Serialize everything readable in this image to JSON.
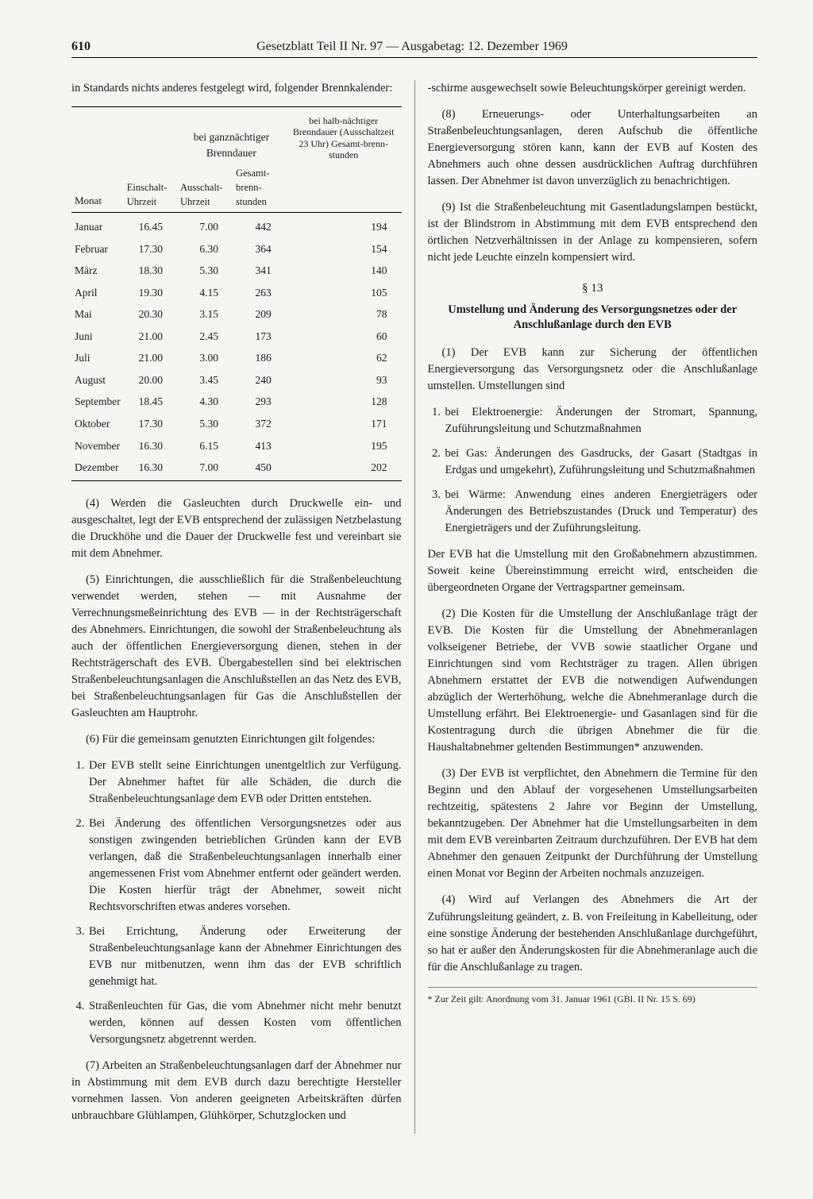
{
  "header": {
    "page": "610",
    "title": "Gesetzblatt Teil II Nr. 97 — Ausgabetag: 12. Dezember 1969"
  },
  "left": {
    "intro": "in Standards nichts anderes festgelegt wird, folgender Brennkalender:",
    "table": {
      "grp1": "bei ganznächtiger Brenndauer",
      "grp2": "bei halb-nächtiger Brenndauer (Ausschaltzeit 23 Uhr) Gesamt-brenn-stunden",
      "h_monat": "Monat",
      "h_ein": "Einschalt-Uhrzeit",
      "h_aus": "Ausschalt-Uhrzeit",
      "h_gesamt": "Gesamt-brenn-stunden",
      "rows": [
        {
          "m": "Januar",
          "e": "16.45",
          "a": "7.00",
          "g": "442",
          "h": "194"
        },
        {
          "m": "Februar",
          "e": "17.30",
          "a": "6.30",
          "g": "364",
          "h": "154"
        },
        {
          "m": "März",
          "e": "18.30",
          "a": "5.30",
          "g": "341",
          "h": "140"
        },
        {
          "m": "April",
          "e": "19.30",
          "a": "4.15",
          "g": "263",
          "h": "105"
        },
        {
          "m": "Mai",
          "e": "20.30",
          "a": "3.15",
          "g": "209",
          "h": "78"
        },
        {
          "m": "Juni",
          "e": "21.00",
          "a": "2.45",
          "g": "173",
          "h": "60"
        },
        {
          "m": "Juli",
          "e": "21.00",
          "a": "3.00",
          "g": "186",
          "h": "62"
        },
        {
          "m": "August",
          "e": "20.00",
          "a": "3.45",
          "g": "240",
          "h": "93"
        },
        {
          "m": "September",
          "e": "18.45",
          "a": "4.30",
          "g": "293",
          "h": "128"
        },
        {
          "m": "Oktober",
          "e": "17.30",
          "a": "5.30",
          "g": "372",
          "h": "171"
        },
        {
          "m": "November",
          "e": "16.30",
          "a": "6.15",
          "g": "413",
          "h": "195"
        },
        {
          "m": "Dezember",
          "e": "16.30",
          "a": "7.00",
          "g": "450",
          "h": "202"
        }
      ]
    },
    "p4": "(4) Werden die Gasleuchten durch Druckwelle ein- und ausgeschaltet, legt der EVB entsprechend der zulässigen Netzbelastung die Druckhöhe und die Dauer der Druckwelle fest und vereinbart sie mit dem Abnehmer.",
    "p5": "(5) Einrichtungen, die ausschließlich für die Straßenbeleuchtung verwendet werden, stehen — mit Ausnahme der Verrechnungsmeßeinrichtung des EVB — in der Rechtsträgerschaft des Abnehmers. Einrichtungen, die sowohl der Straßenbeleuchtung als auch der öffentlichen Energieversorgung dienen, stehen in der Rechtsträgerschaft des EVB. Übergabestellen sind bei elektrischen Straßenbeleuchtungsanlagen die Anschlußstellen an das Netz des EVB, bei Straßenbeleuchtungsanlagen für Gas die Anschlußstellen der Gasleuchten am Hauptrohr.",
    "p6_intro": "(6) Für die gemeinsam genutzten Einrichtungen gilt folgendes:",
    "p6_items": [
      "Der EVB stellt seine Einrichtungen unentgeltlich zur Verfügung. Der Abnehmer haftet für alle Schäden, die durch die Straßenbeleuchtungsanlage dem EVB oder Dritten entstehen.",
      "Bei Änderung des öffentlichen Versorgungsnetzes oder aus sonstigen zwingenden betrieblichen Gründen kann der EVB verlangen, daß die Straßenbeleuchtungsanlagen innerhalb einer angemessenen Frist vom Abnehmer entfernt oder geändert werden. Die Kosten hierfür trägt der Abnehmer, soweit nicht Rechtsvorschriften etwas anderes vorsehen.",
      "Bei Errichtung, Änderung oder Erweiterung der Straßenbeleuchtungsanlage kann der Abnehmer Einrichtungen des EVB nur mitbenutzen, wenn ihm das der EVB schriftlich genehmigt hat.",
      "Straßenleuchten für Gas, die vom Abnehmer nicht mehr benutzt werden, können auf dessen Kosten vom öffentlichen Versorgungsnetz abgetrennt werden."
    ],
    "p7": "(7) Arbeiten an Straßenbeleuchtungsanlagen darf der Abnehmer nur in Abstimmung mit dem EVB durch dazu berechtigte Hersteller vornehmen lassen. Von anderen geeigneten Arbeitskräften dürfen unbrauchbare Glühlampen, Glühkörper, Schutzglocken und"
  },
  "right": {
    "cont": "-schirme ausgewechselt sowie Beleuchtungskörper gereinigt werden.",
    "p8": "(8) Erneuerungs- oder Unterhaltungsarbeiten an Straßenbeleuchtungsanlagen, deren Aufschub die öffentliche Energieversorgung stören kann, kann der EVB auf Kosten des Abnehmers auch ohne dessen ausdrücklichen Auftrag durchführen lassen. Der Abnehmer ist davon unverzüglich zu benachrichtigen.",
    "p9": "(9) Ist die Straßenbeleuchtung mit Gasentladungslampen bestückt, ist der Blindstrom in Abstimmung mit dem EVB entsprechend den örtlichen Netzverhältnissen in der Anlage zu kompensieren, sofern nicht jede Leuchte einzeln kompensiert wird.",
    "s13": "§ 13",
    "s13_title": "Umstellung und Änderung des Versorgungsnetzes oder der Anschlußanlage durch den EVB",
    "s13_p1_intro": "(1) Der EVB kann zur Sicherung der öffentlichen Energieversorgung das Versorgungsnetz oder die Anschlußanlage umstellen. Umstellungen sind",
    "s13_items": [
      "bei Elektroenergie: Änderungen der Stromart, Spannung, Zuführungsleitung und Schutzmaßnahmen",
      "bei Gas: Änderungen des Gasdrucks, der Gasart (Stadtgas in Erdgas und umgekehrt), Zuführungsleitung und Schutzmaßnahmen",
      "bei Wärme: Anwendung eines anderen Energieträgers oder Änderungen des Betriebszustandes (Druck und Temperatur) des Energieträgers und der Zuführungsleitung."
    ],
    "s13_p1_tail": "Der EVB hat die Umstellung mit den Großabnehmern abzustimmen. Soweit keine Übereinstimmung erreicht wird, entscheiden die übergeordneten Organe der Vertragspartner gemeinsam.",
    "s13_p2": "(2) Die Kosten für die Umstellung der Anschlußanlage trägt der EVB. Die Kosten für die Umstellung der Abnehmeranlagen volkseigener Betriebe, der VVB sowie staatlicher Organe und Einrichtungen sind vom Rechtsträger zu tragen. Allen übrigen Abnehmern erstattet der EVB die notwendigen Aufwendungen abzüglich der Werterhöhung, welche die Abnehmeranlage durch die Umstellung erfährt. Bei Elektroenergie- und Gasanlagen sind für die Kostentragung durch die übrigen Abnehmer die für die Haushaltabnehmer geltenden Bestimmungen* anzuwenden.",
    "s13_p3": "(3) Der EVB ist verpflichtet, den Abnehmern die Termine für den Beginn und den Ablauf der vorgesehenen Umstellungsarbeiten rechtzeitig, spätestens 2 Jahre vor Beginn der Umstellung, bekanntzugeben. Der Abnehmer hat die Umstellungsarbeiten in dem mit dem EVB vereinbarten Zeitraum durchzuführen. Der EVB hat dem Abnehmer den genauen Zeitpunkt der Durchführung der Umstellung einen Monat vor Beginn der Arbeiten nochmals anzuzeigen.",
    "s13_p4": "(4) Wird auf Verlangen des Abnehmers die Art der Zuführungsleitung geändert, z. B. von Freileitung in Kabelleitung, oder eine sonstige Änderung der bestehenden Anschlußanlage durchgeführt, so hat er außer den Änderungskosten für die Abnehmeranlage auch die für die Anschlußanlage zu tragen.",
    "footnote": "* Zur Zeit gilt: Anordnung vom 31. Januar 1961 (GBl. II Nr. 15 S. 69)"
  }
}
